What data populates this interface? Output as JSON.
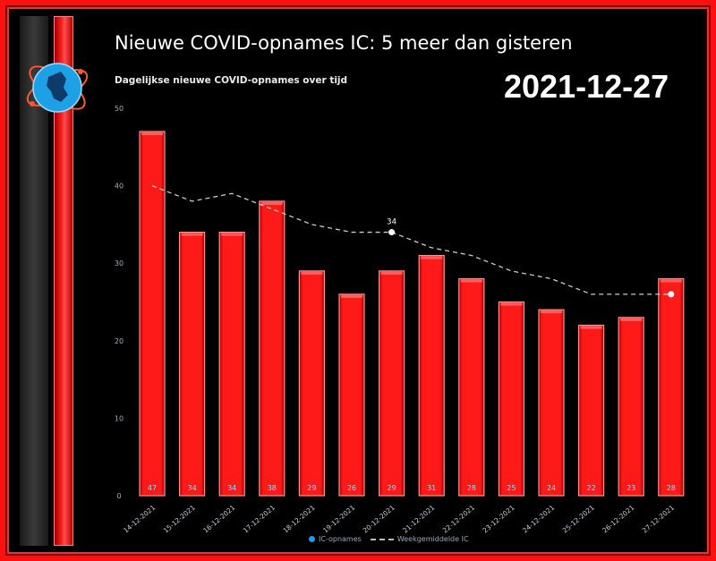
{
  "header": {
    "title": "Nieuwe COVID-opnames IC: 5 meer dan gisteren",
    "subtitle": "Dagelijkse nieuwe COVID-opnames over tijd",
    "date": "2021-12-27"
  },
  "legend": {
    "series1": "IC-opnames",
    "series2": "Weekgemiddelde IC"
  },
  "colors": {
    "bar": "#ff1a1a",
    "background": "#000000",
    "frame": "#ff1010",
    "line": "#cccccc",
    "legend_dot": "#2196f3"
  },
  "chart_data": {
    "type": "bar",
    "title": "Dagelijkse nieuwe COVID-opnames over tijd",
    "categories": [
      "14-12-2021",
      "15-12-2021",
      "16-12-2021",
      "17-12-2021",
      "18-12-2021",
      "19-12-2021",
      "20-12-2021",
      "21-12-2021",
      "22-12-2021",
      "23-12-2021",
      "24-12-2021",
      "25-12-2021",
      "26-12-2021",
      "27-12-2021"
    ],
    "series": [
      {
        "name": "IC-opnames",
        "type": "bar",
        "values": [
          47,
          34,
          34,
          38,
          29,
          26,
          29,
          31,
          28,
          25,
          24,
          22,
          23,
          28
        ],
        "labels": [
          "47",
          "34",
          "34",
          "38",
          "29",
          "26",
          "29",
          "31",
          "28",
          "25",
          "24",
          "22",
          "23",
          "28"
        ]
      },
      {
        "name": "Weekgemiddelde IC",
        "type": "line",
        "values": [
          40,
          38,
          39,
          37,
          35,
          34,
          34,
          32,
          31,
          29,
          28,
          26,
          26,
          26
        ]
      }
    ],
    "annotations": [
      {
        "category": "20-12-2021",
        "value": 34,
        "text": "34"
      }
    ],
    "yticks": [
      "0",
      "10",
      "20",
      "30",
      "40",
      "50"
    ],
    "ylim": [
      0,
      50
    ],
    "grid": false,
    "legend_position": "bottom"
  }
}
